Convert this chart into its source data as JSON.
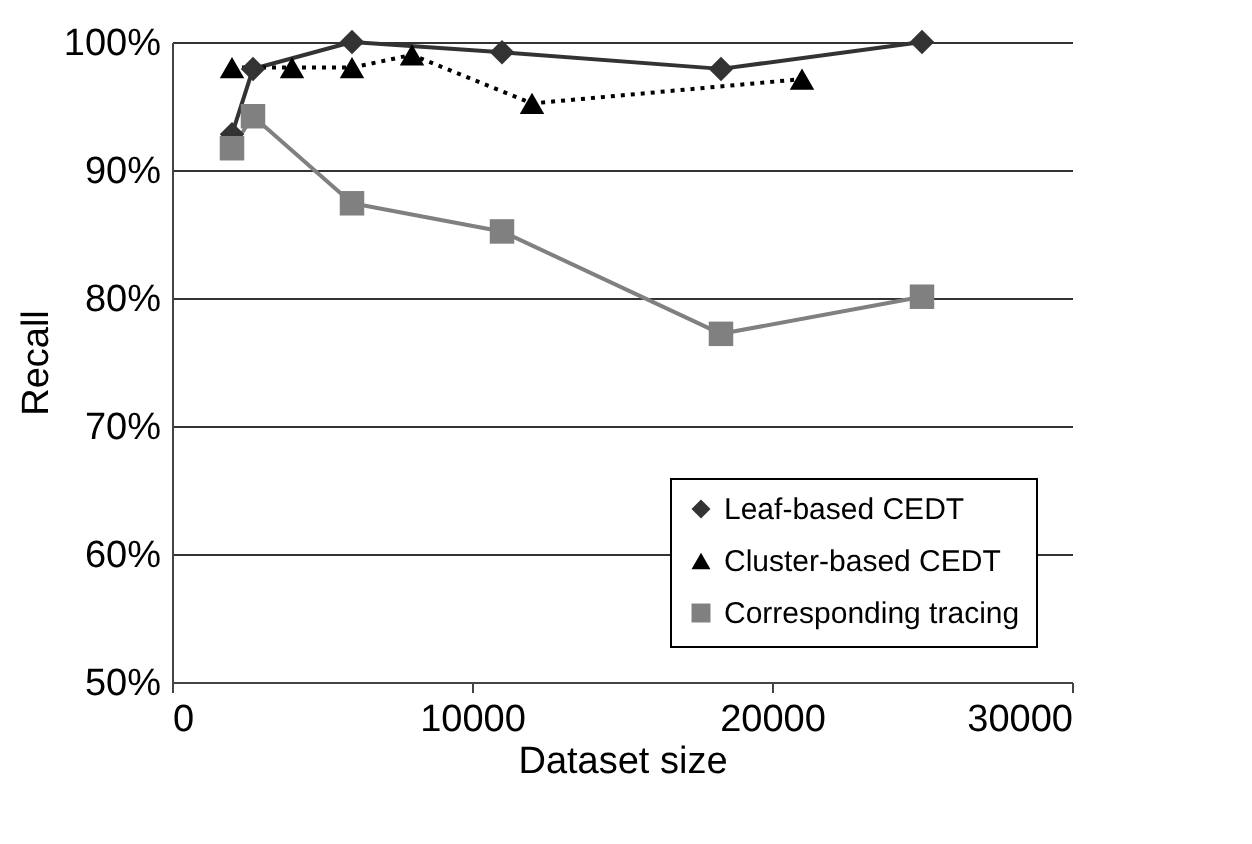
{
  "chart_data": {
    "type": "line",
    "xlabel": "Dataset size",
    "ylabel": "Recall",
    "xlim": [
      0,
      30000
    ],
    "xticks": [
      0,
      10000,
      20000,
      30000
    ],
    "ylim": [
      50,
      100
    ],
    "yticks": [
      {
        "value": 50,
        "label": "50%"
      },
      {
        "value": 60,
        "label": "60%"
      },
      {
        "value": 70,
        "label": "70%"
      },
      {
        "value": 80,
        "label": "80%"
      },
      {
        "value": 90,
        "label": "90%"
      },
      {
        "value": 100,
        "label": "100%"
      }
    ],
    "grid": "y",
    "legend": "bottom right",
    "series": [
      {
        "name": "Leaf-based CEDT",
        "color": "#333333",
        "marker": "diamond",
        "line_style": "solid",
        "x": [
          2000,
          2700,
          6000,
          11000,
          18300,
          25000
        ],
        "values": [
          92.8,
          97.9,
          100,
          99.2,
          97.9,
          100
        ]
      },
      {
        "name": "Cluster-based CEDT",
        "color": "#000000",
        "marker": "triangle",
        "line_style": "dotted",
        "x": [
          2000,
          4000,
          6000,
          8000,
          12000,
          21000
        ],
        "values": [
          98,
          98,
          98,
          99,
          95.2,
          97.1
        ]
      },
      {
        "name": "Corresponding tracing",
        "color": "#808080",
        "marker": "square",
        "line_style": "solid",
        "x": [
          2000,
          2700,
          6000,
          11000,
          18300,
          25000
        ],
        "values": [
          91.7,
          94.2,
          87.4,
          85.2,
          77.2,
          80.1
        ]
      }
    ]
  }
}
